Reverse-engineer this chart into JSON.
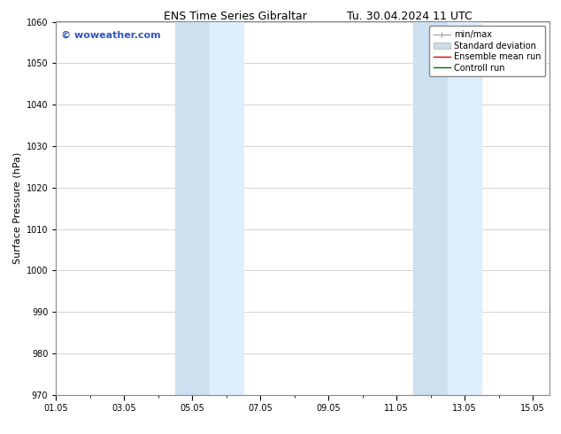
{
  "title": "ENS Time Series Gibraltar",
  "title2": "Tu. 30.04.2024 11 UTC",
  "ylabel": "Surface Pressure (hPa)",
  "ylim": [
    970,
    1060
  ],
  "yticks": [
    970,
    980,
    990,
    1000,
    1010,
    1020,
    1030,
    1040,
    1050,
    1060
  ],
  "xlim": [
    0,
    14.5
  ],
  "xtick_labels": [
    "01.05",
    "03.05",
    "05.05",
    "07.05",
    "09.05",
    "11.05",
    "13.05",
    "15.05"
  ],
  "xtick_positions": [
    0,
    2,
    4,
    6,
    8,
    10,
    12,
    14
  ],
  "background_color": "#ffffff",
  "plot_bg_color": "#ffffff",
  "shaded_regions": [
    {
      "x_start": 3.5,
      "x_end": 4.5,
      "color": "#cce0f0"
    },
    {
      "x_start": 4.5,
      "x_end": 5.5,
      "color": "#ddeeff"
    },
    {
      "x_start": 10.5,
      "x_end": 11.5,
      "color": "#cce0f0"
    },
    {
      "x_start": 11.5,
      "x_end": 12.5,
      "color": "#ddeeff"
    }
  ],
  "watermark": "© woweather.com",
  "watermark_color": "#3355bb",
  "legend_entries": [
    {
      "label": "min/max",
      "color": "#aaaaaa",
      "lw": 1.0
    },
    {
      "label": "Standard deviation",
      "color": "#ccdde8",
      "lw": 5
    },
    {
      "label": "Ensemble mean run",
      "color": "#dd0000",
      "lw": 1.0
    },
    {
      "label": "Controll run",
      "color": "#006600",
      "lw": 1.0
    }
  ],
  "grid_color": "#cccccc",
  "spine_color": "#888888",
  "tick_color": "#000000",
  "font_size_title": 9,
  "font_size_axis": 8,
  "font_size_tick": 7,
  "font_size_legend": 7,
  "font_size_watermark": 8
}
